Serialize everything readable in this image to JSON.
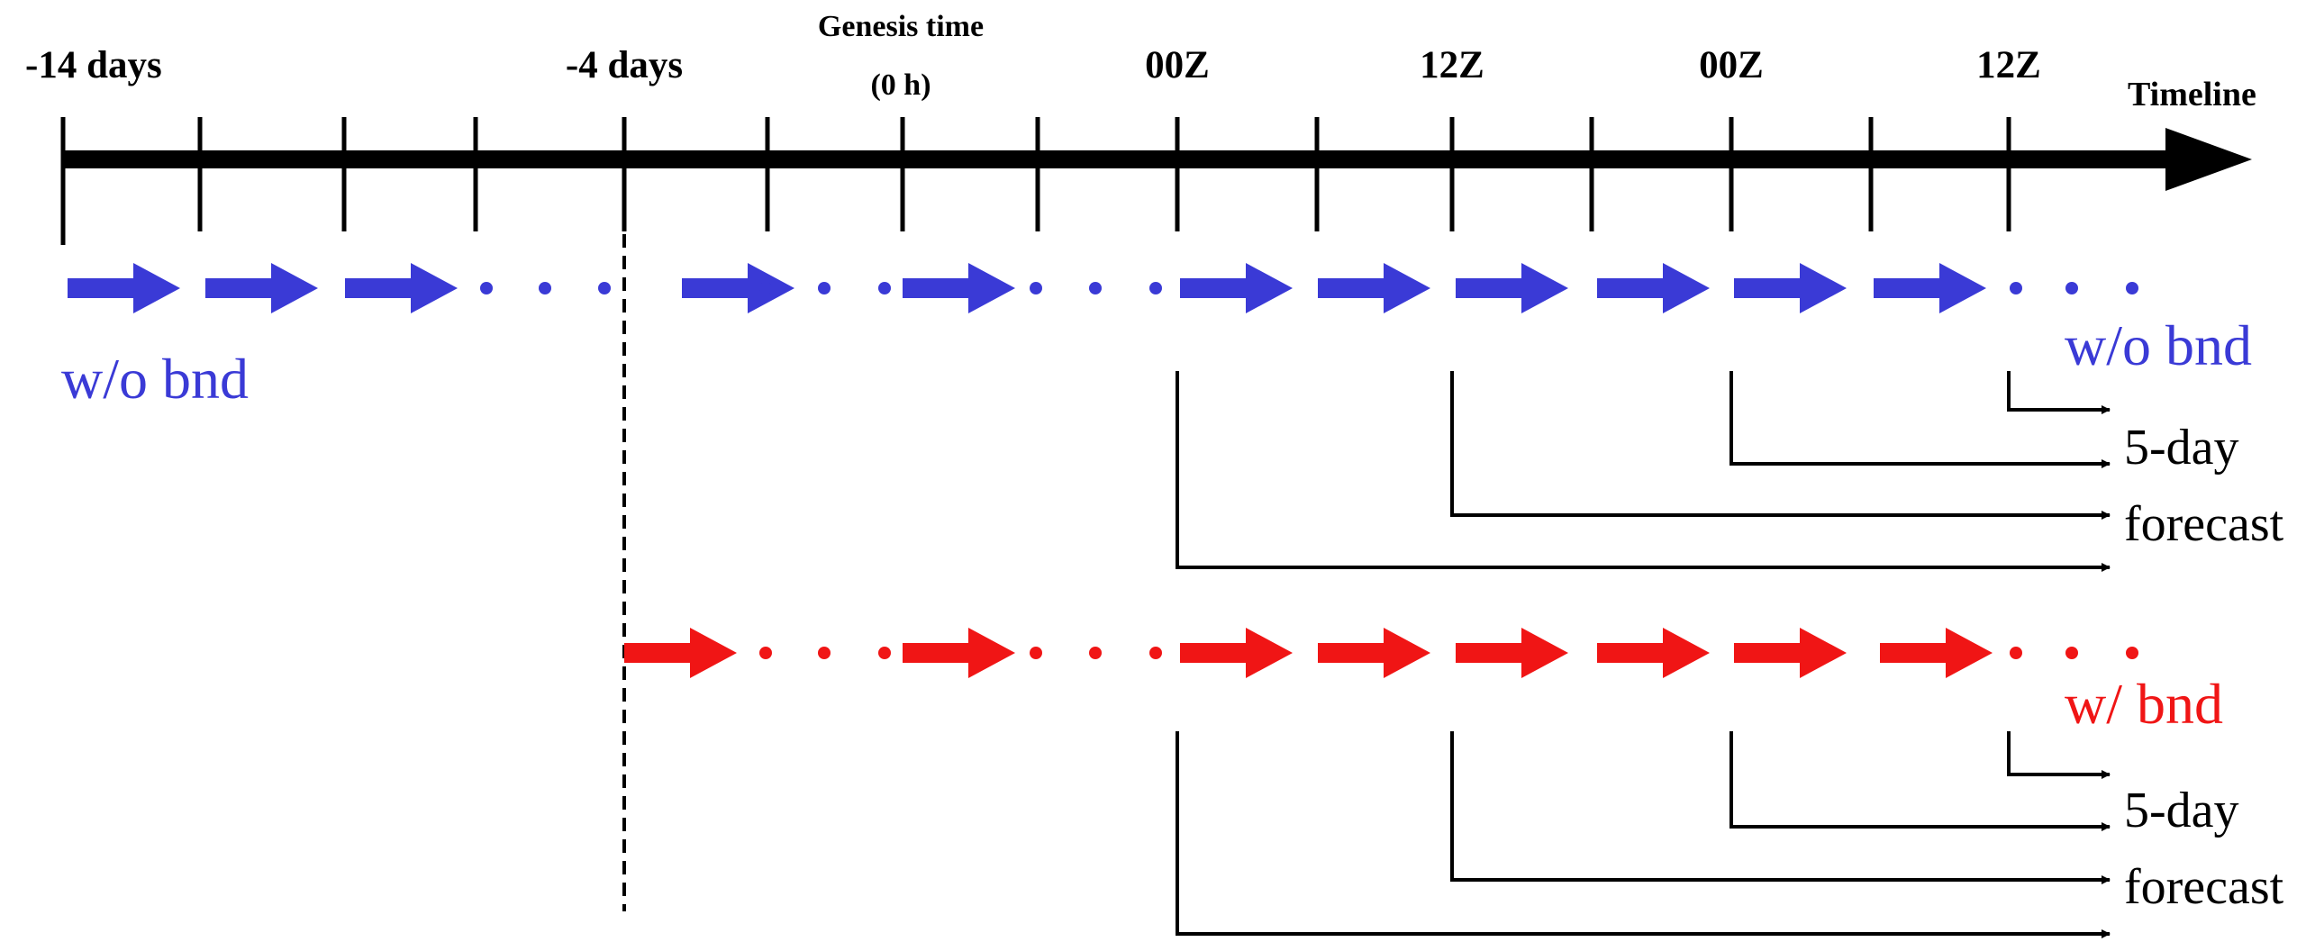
{
  "timeline": {
    "label": "Timeline",
    "labels": {
      "minus14": "-14 days",
      "minus4": "-4 days",
      "genesis_title": "Genesis time",
      "genesis_sub": "(0 h)",
      "z00_a": "00Z",
      "z12_a": "12Z",
      "z00_b": "00Z",
      "z12_b": "12Z"
    }
  },
  "rows": {
    "without_boundary": {
      "label": "w/o bnd",
      "forecast_top": "5-day",
      "forecast_bottom": "forecast"
    },
    "with_boundary": {
      "label": "w/ bnd",
      "forecast_top": "5-day",
      "forecast_bottom": "forecast"
    }
  },
  "colors": {
    "blue": "#3a3ad6",
    "red": "#f01515",
    "black": "#000000"
  },
  "icons": {
    "cycle_arrow": "right-arrow-icon",
    "gap": "ellipsis-dots"
  }
}
